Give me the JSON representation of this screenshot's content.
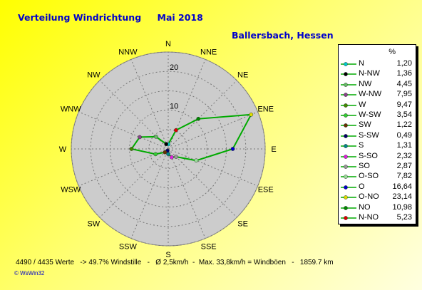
{
  "header": {
    "title": "Verteilung Windrichtung",
    "period": "Mai 2018",
    "location": "Ballersbach, Hessen"
  },
  "chart_data": {
    "type": "radar",
    "title": "Verteilung Windrichtung  Mai 2018",
    "unit": "%",
    "directions": [
      "N",
      "NNE",
      "NE",
      "ENE",
      "E",
      "ESE",
      "SE",
      "SSE",
      "S",
      "SSW",
      "SW",
      "WSW",
      "W",
      "WNW",
      "NW",
      "NNW"
    ],
    "rlim": [
      0,
      25
    ],
    "ring_labels": [
      10,
      20
    ],
    "ring_values": [
      5,
      10,
      15,
      20,
      25
    ],
    "grid": true,
    "legend_position": "right",
    "series": [
      {
        "label": "N",
        "value": 1.2,
        "color": "#00cccc"
      },
      {
        "label": "N-NW",
        "value": 1.36,
        "color": "#000000"
      },
      {
        "label": "NW",
        "value": 4.45,
        "color": "#66bb66"
      },
      {
        "label": "W-NW",
        "value": 7.95,
        "color": "#884488"
      },
      {
        "label": "W",
        "value": 9.47,
        "color": "#448800"
      },
      {
        "label": "W-SW",
        "value": 3.54,
        "color": "#33cc33"
      },
      {
        "label": "SW",
        "value": 1.22,
        "color": "#663300"
      },
      {
        "label": "S-SW",
        "value": 0.49,
        "color": "#000066"
      },
      {
        "label": "S",
        "value": 1.31,
        "color": "#008888"
      },
      {
        "label": "S-SO",
        "value": 2.32,
        "color": "#dd22dd"
      },
      {
        "label": "SO",
        "value": 2.87,
        "color": "#999999"
      },
      {
        "label": "O-SO",
        "value": 7.82,
        "color": "#99dd99"
      },
      {
        "label": "O",
        "value": 16.64,
        "color": "#0000cc"
      },
      {
        "label": "O-NO",
        "value": 23.14,
        "color": "#dddd00"
      },
      {
        "label": "NO",
        "value": 10.98,
        "color": "#008800"
      },
      {
        "label": "N-NO",
        "value": 5.23,
        "color": "#dd0000"
      }
    ],
    "line_color": "#00aa00",
    "disc_color": "#cccccc"
  },
  "legend": {
    "header": "%"
  },
  "footer": {
    "stats": "4490 / 4435 Werte   -> 49.7% Windstille   -   Ø 2,5km/h  -  Max. 33,8km/h = Windböen   -   1859.7 km",
    "credit": "© WsWin32"
  }
}
